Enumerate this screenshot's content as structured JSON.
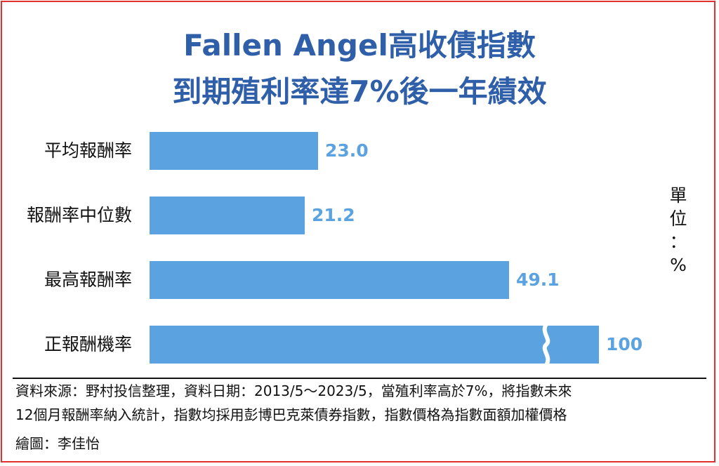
{
  "chart_data": {
    "type": "bar",
    "orientation": "horizontal",
    "title": "Fallen Angel高收債指數",
    "subtitle": "到期殖利率達7%後一年績效",
    "categories": [
      "平均報酬率",
      "報酬率中位數",
      "最高報酬率",
      "正報酬機率"
    ],
    "values": [
      23.0,
      21.2,
      49.1,
      100
    ],
    "value_labels": [
      "23.0",
      "21.2",
      "49.1",
      "100"
    ],
    "axis_break_on": "正報酬機率",
    "unit": "單\n位\n：\n%",
    "bar_color": "#5ba3e0",
    "title_color": "#2f5fa8"
  },
  "footer": {
    "note_line1": "資料來源：野村投信整理，資料日期：2013/5～2023/5，當殖利率高於7%，將指數未來",
    "note_line2": "12個月報酬率納入統計，指數均採用彭博巴克萊債券指數，指數價格為指數面額加權價格",
    "credit": "繪圖：李佳怡"
  }
}
